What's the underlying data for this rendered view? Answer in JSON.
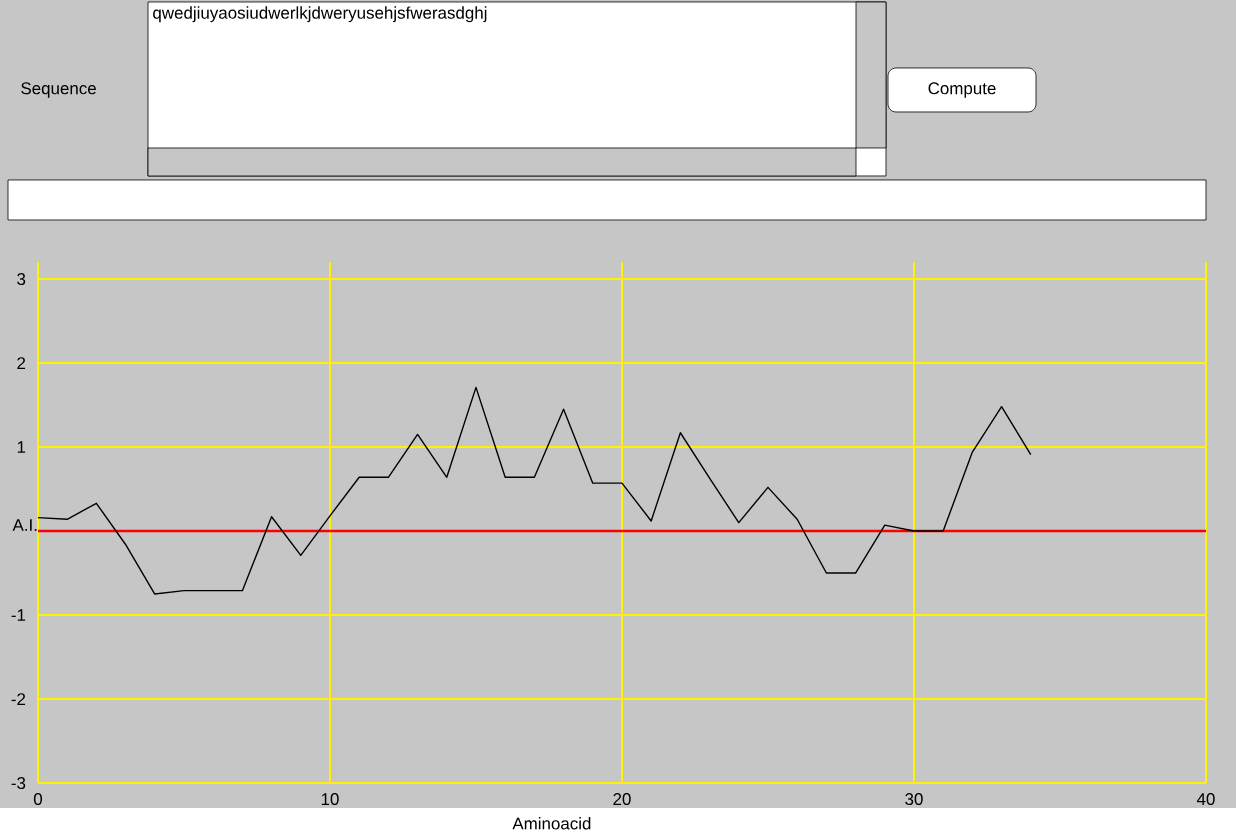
{
  "chart_data": {
    "type": "line",
    "xlabel": "Aminoacid",
    "ylabel": "A.I.",
    "x": [
      0,
      1,
      2,
      3,
      4,
      5,
      6,
      7,
      8,
      9,
      10,
      11,
      12,
      13,
      14,
      15,
      16,
      17,
      18,
      19,
      20,
      21,
      22,
      23,
      24,
      25,
      26,
      27,
      28,
      29,
      30,
      31,
      32,
      33,
      34
    ],
    "series": [
      {
        "color": "#000000",
        "values": [
          0.16,
          0.14,
          0.33,
          -0.16,
          -0.75,
          -0.71,
          -0.71,
          -0.71,
          0.17,
          -0.29,
          0.18,
          0.64,
          0.64,
          1.15,
          0.64,
          1.71,
          0.64,
          0.64,
          1.45,
          0.57,
          0.57,
          0.12,
          1.17,
          0.63,
          0.1,
          0.52,
          0.14,
          -0.5,
          -0.5,
          0.07,
          0.0,
          0.0,
          0.94,
          1.48,
          0.91
        ]
      }
    ],
    "xlim": [
      0,
      40
    ],
    "ylim": [
      -3,
      3.2
    ],
    "xticks": [
      0,
      10,
      20,
      30,
      40
    ],
    "yticks": [
      -3,
      -2,
      -1,
      {
        "value": 0,
        "label": null
      },
      1,
      2,
      3
    ],
    "grid": true,
    "marker": "none",
    "line_style": "solid",
    "ref_lines": [
      {
        "axis": "y",
        "value": 0,
        "color": "#ff0000"
      }
    ],
    "annotations": [
      "Sequence",
      "qwedjiuyaosiudwerlkjdweryusehjsfwerasdghj",
      "Compute"
    ]
  }
}
